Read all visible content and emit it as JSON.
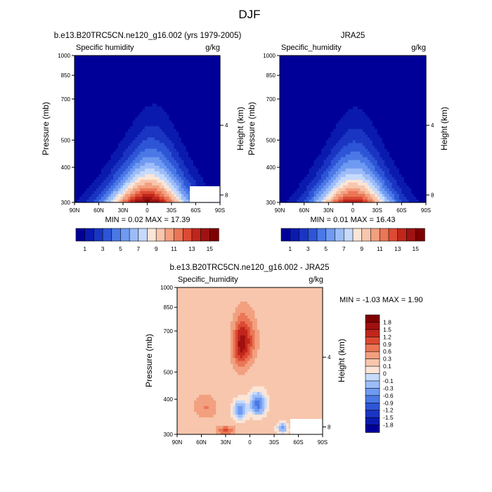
{
  "figure": {
    "title": "DJF"
  },
  "axes_common": {
    "ylabel": "Pressure (mb)",
    "ylabel_right": "Height (km)",
    "pressure_ticks": [
      300,
      400,
      500,
      700,
      850,
      1000
    ],
    "height_ticks": [
      4,
      8
    ],
    "lat_ticks": [
      "90N",
      "60N",
      "30N",
      "0",
      "30S",
      "60S",
      "90S"
    ]
  },
  "chart_data": [
    {
      "type": "heatmap",
      "title": "b.e13.B20TRC5CN.ne120_g16.002 (yrs 1979-2005)",
      "left_label": "Specific humidity",
      "unit": "g/kg",
      "stats_text": "MIN =  0.02  MAX =  17.39",
      "min": 0.02,
      "max": 17.39,
      "colorbar_labels": [
        "1",
        "3",
        "5",
        "7",
        "9",
        "11",
        "13",
        "15"
      ],
      "peak": 17.39,
      "spread_deg": 37,
      "tilt_deg": 10,
      "height_scale": 0.88,
      "colors": [
        "#000099",
        "#0a1aae",
        "#1a35c2",
        "#2d55d6",
        "#4a78e6",
        "#6f9af2",
        "#9cbcf8",
        "#c6dafc",
        "#fbe5d6",
        "#f7c6ad",
        "#f2a07f",
        "#ea7656",
        "#dc4a33",
        "#c0261b",
        "#9e1212",
        "#800000"
      ]
    },
    {
      "type": "heatmap",
      "title": "JRA25",
      "left_label": "Specific_humidity",
      "unit": "g/kg",
      "stats_text": "MIN =  0.01  MAX =  16.43",
      "min": 0.01,
      "max": 16.43,
      "colorbar_labels": [
        "1",
        "3",
        "5",
        "7",
        "9",
        "11",
        "13",
        "15"
      ],
      "peak": 16.43,
      "spread_deg": 35,
      "tilt_deg": 4,
      "height_scale": 0.84,
      "colors": [
        "#000099",
        "#0a1aae",
        "#1a35c2",
        "#2d55d6",
        "#4a78e6",
        "#6f9af2",
        "#9cbcf8",
        "#c6dafc",
        "#fbe5d6",
        "#f7c6ad",
        "#f2a07f",
        "#ea7656",
        "#dc4a33",
        "#c0261b",
        "#9e1212",
        "#800000"
      ]
    },
    {
      "type": "heatmap",
      "title": "b.e13.B20TRC5CN.ne120_g16.002 - JRA25",
      "left_label": "Specific_humidity",
      "unit": "g/kg",
      "stats_text": "MIN = -1.03  MAX =  1.90",
      "min": -1.03,
      "max": 1.9,
      "colorbar_labels": [
        "1.8",
        "1.5",
        "1.2",
        "0.9",
        "0.6",
        "0.3",
        "0.1",
        "0",
        "-0.1",
        "-0.3",
        "-0.6",
        "-0.9",
        "-1.2",
        "-1.5",
        "-1.8"
      ],
      "colors": [
        "#800000",
        "#a01010",
        "#c0261b",
        "#dc4a33",
        "#ea7656",
        "#f2a07f",
        "#f7c6ad",
        "#fbe5d6",
        "#c6dafc",
        "#9cbcf8",
        "#6f9af2",
        "#4a78e6",
        "#2d55d6",
        "#1a35c2",
        "#0a1aae",
        "#000099"
      ]
    }
  ]
}
